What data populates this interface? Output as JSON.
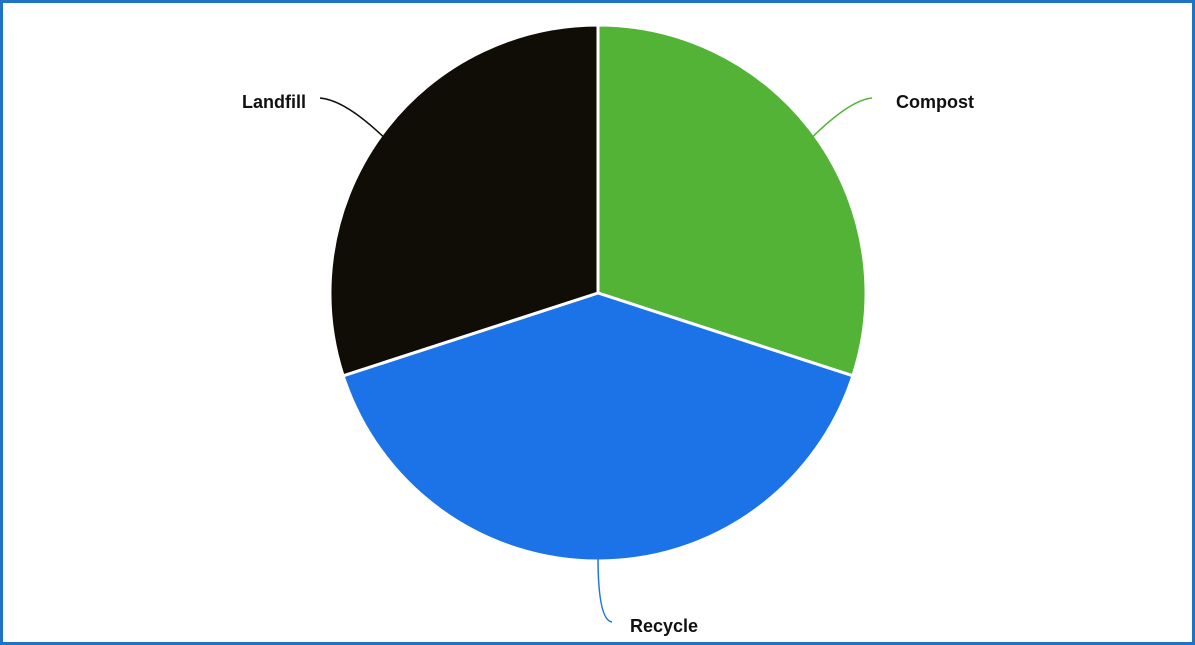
{
  "chart_data": {
    "type": "pie",
    "title": "",
    "slices": [
      {
        "label": "Compost",
        "value": 30,
        "color": "#52b336"
      },
      {
        "label": "Recycle",
        "value": 40,
        "color": "#1c73e8"
      },
      {
        "label": "Landfill",
        "value": 30,
        "color": "#100d07"
      }
    ],
    "start_angle_deg": 0,
    "direction": "clockwise",
    "slice_border_color": "#ffffff",
    "legend": "none",
    "labels": "outside-with-leader-lines"
  },
  "frame": {
    "border_color": "#1f73c4"
  }
}
